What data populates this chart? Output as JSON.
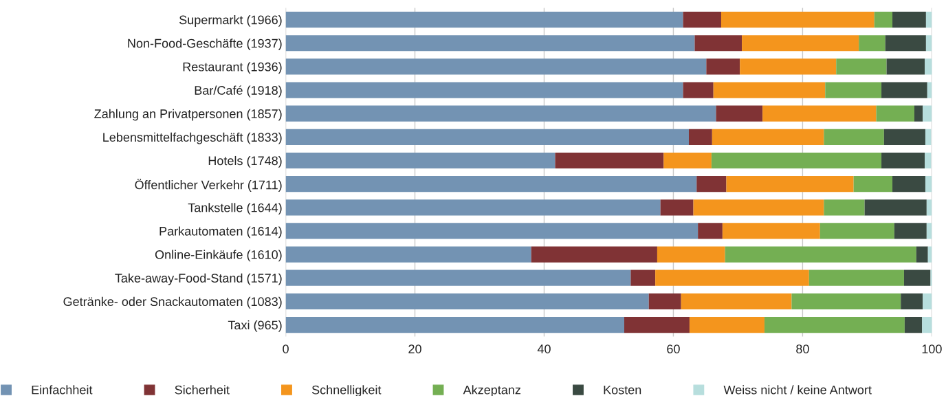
{
  "chart_data": {
    "type": "bar",
    "orientation": "horizontal",
    "stacked": true,
    "categories": [
      "Supermarkt (1966)",
      "Non-Food-Geschäfte (1937)",
      "Restaurant (1936)",
      "Bar/Café (1918)",
      "Zahlung an Privatpersonen (1857)",
      "Lebensmittelfachgeschäft (1833)",
      "Hotels (1748)",
      "Öffentlicher Verkehr (1711)",
      "Tankstelle (1644)",
      "Parkautomaten (1614)",
      "Online-Einkäufe (1610)",
      "Take-away-Food-Stand (1571)",
      "Getränke- oder Snackautomaten (1083)",
      "Taxi (965)"
    ],
    "series": [
      {
        "name": "Einfachheit",
        "color": "#7393b3",
        "values": [
          61.5,
          63.3,
          65.1,
          61.5,
          66.6,
          62.4,
          41.7,
          63.6,
          58.0,
          63.8,
          38.0,
          53.4,
          56.2,
          52.4
        ]
      },
      {
        "name": "Sicherheit",
        "color": "#803335",
        "values": [
          5.9,
          7.3,
          5.2,
          4.7,
          7.2,
          3.6,
          16.8,
          4.6,
          5.1,
          3.8,
          19.5,
          3.8,
          5.0,
          10.1
        ]
      },
      {
        "name": "Schnelligkeit",
        "color": "#f4951d",
        "values": [
          23.7,
          18.1,
          14.9,
          17.3,
          17.6,
          17.3,
          7.4,
          19.7,
          20.2,
          15.1,
          10.5,
          23.8,
          17.1,
          11.6
        ]
      },
      {
        "name": "Akzeptanz",
        "color": "#74af53",
        "values": [
          2.8,
          4.1,
          7.8,
          8.7,
          5.9,
          9.3,
          26.3,
          6.0,
          6.3,
          11.5,
          29.6,
          14.7,
          16.9,
          21.7
        ]
      },
      {
        "name": "Kosten",
        "color": "#3a4a42",
        "values": [
          5.2,
          6.3,
          5.9,
          7.1,
          1.3,
          6.4,
          6.7,
          5.1,
          9.6,
          5.0,
          1.8,
          4.1,
          3.4,
          2.7
        ]
      },
      {
        "name": "Weiss nicht / keine Antwort",
        "color": "#b7dedd",
        "values": [
          0.9,
          0.9,
          1.2,
          0.7,
          1.4,
          0.9,
          1.0,
          1.0,
          0.8,
          0.8,
          0.6,
          0.3,
          1.4,
          1.6
        ]
      }
    ],
    "xlim": [
      0,
      100
    ],
    "xticks": [
      0,
      20,
      40,
      60,
      80,
      100
    ],
    "grid": "x",
    "legend": "bottom"
  }
}
